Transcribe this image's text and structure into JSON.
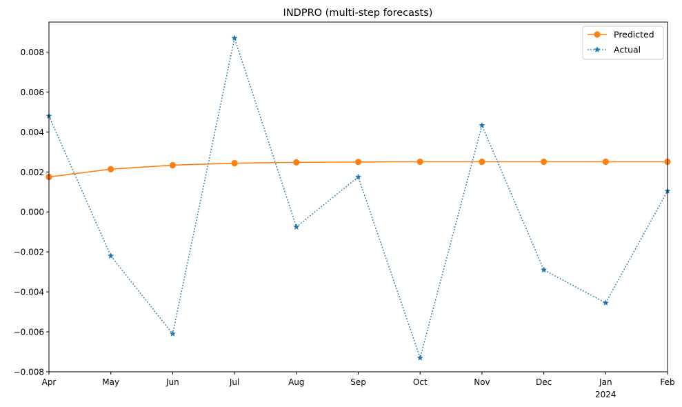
{
  "chart_data": {
    "type": "line",
    "title": "INDPRO (multi-step forecasts)",
    "xlabel": "",
    "ylabel": "",
    "categories": [
      "Apr",
      "May",
      "Jun",
      "Jul",
      "Aug",
      "Sep",
      "Oct",
      "Nov",
      "Dec",
      "Jan",
      "Feb"
    ],
    "year_label": {
      "category": "Jan",
      "text": "2024"
    },
    "ylim": [
      -0.008,
      0.0095
    ],
    "y_ticks": [
      "−0.008",
      "−0.006",
      "−0.004",
      "−0.002",
      "0.000",
      "0.002",
      "0.004",
      "0.006",
      "0.008"
    ],
    "y_tick_values": [
      -0.008,
      -0.006,
      -0.004,
      -0.002,
      0.0,
      0.002,
      0.004,
      0.006,
      0.008
    ],
    "grid": false,
    "legend_position": "top-right",
    "series": [
      {
        "name": "Predicted",
        "color": "#ff7f0e",
        "line_style": "solid",
        "marker": "circle",
        "values": [
          0.00175,
          0.00214,
          0.00234,
          0.00244,
          0.00248,
          0.0025,
          0.00251,
          0.00251,
          0.00251,
          0.00251,
          0.00251
        ]
      },
      {
        "name": "Actual",
        "color": "#1f77b4",
        "line_style": "dotted",
        "marker": "star",
        "values": [
          0.0048,
          -0.0022,
          -0.0061,
          0.0087,
          -0.00075,
          0.00175,
          -0.0073,
          0.00433,
          -0.0029,
          -0.00455,
          0.00105
        ]
      }
    ]
  }
}
